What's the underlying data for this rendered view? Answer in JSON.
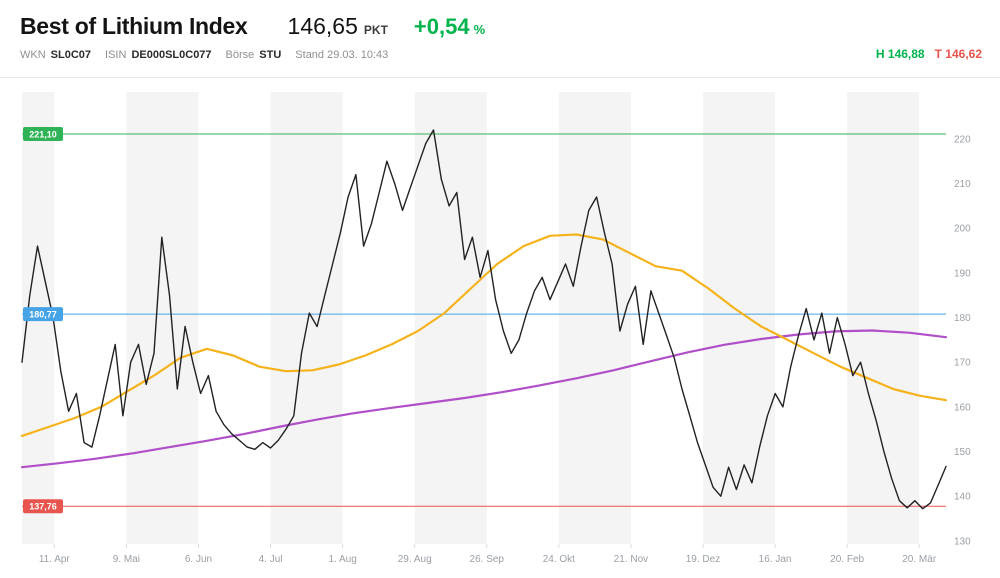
{
  "theme": {
    "up_color": "#00b44c",
    "down_color": "#e8544d"
  },
  "header": {
    "title": "Best of Lithium Index",
    "price": "146,65",
    "unit": "PKT",
    "change_value": "+0,54",
    "change_unit": "%",
    "wkn_label": "WKN",
    "wkn": "SL0C07",
    "isin_label": "ISIN",
    "isin": "DE000SL0C077",
    "exchange_label": "Börse",
    "exchange": "STU",
    "stand": "Stand 29.03. 10:43",
    "high_label": "H",
    "high_value": "146,88",
    "low_label": "T",
    "low_value": "146,62"
  },
  "chart_data": {
    "type": "line",
    "title": "Best of Lithium Index price chart",
    "x_labels": [
      "11. Apr",
      "9. Mai",
      "6. Jun",
      "4. Jul",
      "1. Aug",
      "29. Aug",
      "26. Sep",
      "24. Okt",
      "21. Nov",
      "19. Dez",
      "16. Jan",
      "20. Feb",
      "20. Mär"
    ],
    "yticks": [
      130,
      140,
      150,
      160,
      170,
      180,
      190,
      200,
      210,
      220
    ],
    "ylim": [
      129.3,
      230.5
    ],
    "band_color": "#f4f4f4",
    "axis_text_color": "#9aa0a6",
    "tick_color": "#dddddd",
    "legend_position": "none",
    "grid": false,
    "reference_lines": [
      {
        "value": 221.1,
        "label": "221,10",
        "color": "#2fb356"
      },
      {
        "value": 180.77,
        "label": "180,77",
        "color": "#45a3e6"
      },
      {
        "value": 137.76,
        "label": "137,76",
        "color": "#e8554e"
      }
    ],
    "series": [
      {
        "name": "moving-average-long",
        "color": "#b04fc8",
        "width": 2.2,
        "values": [
          146.5,
          147.4,
          148.4,
          149.6,
          151,
          152.4,
          153.9,
          155.6,
          157.2,
          158.6,
          159.8,
          160.9,
          162,
          163.3,
          164.8,
          166.4,
          168.2,
          170.2,
          172.2,
          173.9,
          175.2,
          176.2,
          176.9,
          177.1,
          176.6,
          175.6
        ]
      },
      {
        "name": "moving-average-short",
        "color": "#f6b21b",
        "width": 2.2,
        "values": [
          153.5,
          155.5,
          157.5,
          160,
          163.5,
          167,
          171,
          173,
          171.5,
          169,
          168,
          168.2,
          169.5,
          171.5,
          174,
          177,
          181,
          186.5,
          192,
          196,
          198.3,
          198.6,
          197.5,
          194.5,
          191.5,
          190.5,
          186.5,
          182,
          178,
          175,
          172,
          169,
          166.5,
          164,
          162.5,
          161.5
        ]
      },
      {
        "name": "price",
        "color": "#222222",
        "width": 1.4,
        "values": [
          170,
          185,
          196,
          188,
          180,
          168,
          159,
          163,
          152,
          151,
          158,
          166,
          174,
          158,
          170,
          174,
          165,
          172,
          198,
          185,
          164,
          178,
          170,
          163,
          167,
          159,
          156,
          154,
          152.5,
          151,
          150.5,
          152,
          150.8,
          152.5,
          155,
          158,
          172,
          181,
          178,
          185,
          192,
          199,
          207,
          212,
          196,
          201,
          208,
          215,
          210,
          204,
          209,
          214,
          219,
          222,
          211,
          205,
          208,
          193,
          198,
          189,
          195,
          184,
          177,
          172,
          175,
          181,
          186,
          189,
          184,
          188,
          192,
          187,
          196,
          204,
          207,
          199,
          192,
          177,
          183,
          187,
          174,
          186,
          181,
          176,
          171,
          164,
          158,
          152,
          147,
          142,
          140,
          146.5,
          141.5,
          147,
          143,
          151,
          158,
          163,
          160,
          169,
          176,
          182,
          175,
          181,
          172,
          180,
          174,
          167,
          170,
          163,
          157,
          150,
          144,
          139,
          137.4,
          139,
          137.2,
          138.5,
          142.5,
          146.65
        ]
      }
    ]
  }
}
